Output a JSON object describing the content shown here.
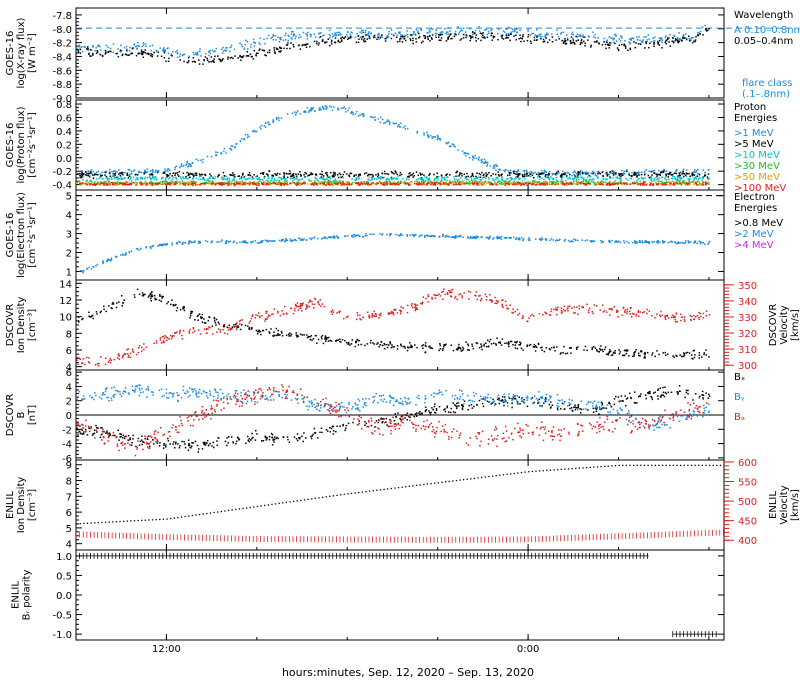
{
  "xaxis": {
    "label": "hours:minutes, Sep. 12, 2020 – Sep. 13, 2020",
    "range_hours": [
      -3,
      18.5
    ],
    "ticks": [
      {
        "value": 0,
        "label": "12:00"
      },
      {
        "value": 12,
        "label": "0:00"
      }
    ]
  },
  "chart_data": [
    {
      "id": "xray",
      "type": "scatter",
      "ylabel_lines": [
        "GOES-16",
        "log(X-ray flux)",
        "[W m⁻²]"
      ],
      "ylim": [
        -9.0,
        -7.7
      ],
      "ticks": [
        -9.0,
        -8.8,
        -8.6,
        -8.4,
        -8.2,
        -8.0,
        -7.8
      ],
      "tick_labels": [
        "-9.0",
        "-8.8",
        "-8.6",
        "-8.4",
        "-8.2",
        "-8.0",
        "-7.8"
      ],
      "hline": {
        "value": -7.99,
        "dash": true,
        "color": "#1a8de0"
      },
      "legend": {
        "title_lines": [
          "Wavelength"
        ],
        "items": [
          {
            "text": "A 0.10–0.8nm",
            "color": "#1a8de0"
          },
          {
            "text": "0.05–0.4nm",
            "color": "#000000"
          }
        ],
        "footer_lines": [
          "flare class",
          "(.1–.8nm)"
        ],
        "footer_color": "#1a8de0"
      },
      "series": [
        {
          "name": "0.10–0.8nm",
          "color": "#1a8de0",
          "x": [
            -3,
            -1.8,
            -0.6,
            0.6,
            1.8,
            3,
            4.2,
            5.4,
            6.6,
            7.8,
            9,
            10.2,
            11.4,
            12.6,
            13.8,
            15,
            16.2,
            17.4,
            18
          ],
          "y": [
            -8.28,
            -8.28,
            -8.24,
            -8.38,
            -8.3,
            -8.18,
            -8.08,
            -8.06,
            -8.06,
            -8.07,
            -8.04,
            -8.03,
            -8.04,
            -8.08,
            -8.1,
            -8.15,
            -8.15,
            -8.1,
            -7.92
          ],
          "noise": 0.05
        },
        {
          "name": "0.05–0.4nm",
          "color": "#000000",
          "x": [
            -3,
            -1.8,
            -0.6,
            0.6,
            1.8,
            3,
            4.2,
            5.4,
            6.6,
            7.8,
            9,
            10.2,
            11.4,
            12.6,
            13.8,
            15,
            16.2,
            17.4,
            18
          ],
          "y": [
            -8.32,
            -8.33,
            -8.35,
            -8.46,
            -8.44,
            -8.36,
            -8.22,
            -8.16,
            -8.14,
            -8.13,
            -8.12,
            -8.1,
            -8.12,
            -8.15,
            -8.18,
            -8.24,
            -8.2,
            -8.15,
            -8.0
          ],
          "noise": 0.05
        }
      ]
    },
    {
      "id": "proton",
      "type": "scatter",
      "ylabel_lines": [
        "GOES-16",
        "log(Proton flux)",
        "[cm⁻²s⁻¹sr⁻¹]"
      ],
      "ylim": [
        -0.48,
        0.86
      ],
      "ticks": [
        -0.4,
        -0.2,
        0.0,
        0.2,
        0.4,
        0.6,
        0.8
      ],
      "tick_labels": [
        "-0.4",
        "-0.2",
        "0.0",
        "0.2",
        "0.4",
        "0.6",
        "0.8"
      ],
      "legend": {
        "title_lines": [
          "Proton",
          "Energies"
        ],
        "items": [
          {
            "text": ">1 MeV",
            "color": "#1a8de0"
          },
          {
            "text": ">5 MeV",
            "color": "#000000"
          },
          {
            "text": ">10 MeV",
            "color": "#00c8c8"
          },
          {
            "text": ">30 MeV",
            "color": "#22bb22"
          },
          {
            "text": ">50 MeV",
            "color": "#e0a000"
          },
          {
            "text": ">100 MeV",
            "color": "#e02020"
          }
        ]
      },
      "series": [
        {
          "name": ">1 MeV",
          "color": "#1a8de0",
          "x": [
            -3,
            -1,
            0,
            1,
            2,
            3,
            4,
            5,
            6,
            7,
            8,
            9,
            10,
            11,
            12,
            14,
            16,
            18
          ],
          "y": [
            -0.2,
            -0.2,
            -0.18,
            -0.05,
            0.12,
            0.45,
            0.65,
            0.75,
            0.72,
            0.58,
            0.45,
            0.3,
            0.05,
            -0.15,
            -0.22,
            -0.22,
            -0.2,
            -0.2
          ],
          "noise": 0.03
        },
        {
          "name": ">5 MeV",
          "color": "#000000",
          "x": [
            -3,
            18
          ],
          "y": [
            -0.24,
            -0.24
          ],
          "noise": 0.035
        },
        {
          "name": ">10 MeV",
          "color": "#00c8c8",
          "x": [
            -3,
            18
          ],
          "y": [
            -0.3,
            -0.3
          ],
          "noise": 0.025
        },
        {
          "name": ">30 MeV",
          "color": "#22bb22",
          "x": [
            -3,
            18
          ],
          "y": [
            -0.36,
            -0.36
          ],
          "noise": 0.02
        },
        {
          "name": ">50 MeV",
          "color": "#e0a000",
          "x": [
            -3,
            18
          ],
          "y": [
            -0.37,
            -0.37
          ],
          "noise": 0.02
        },
        {
          "name": ">100 MeV",
          "color": "#e02020",
          "x": [
            -3,
            18
          ],
          "y": [
            -0.38,
            -0.38
          ],
          "noise": 0.015
        }
      ]
    },
    {
      "id": "electron",
      "type": "scatter",
      "ylabel_lines": [
        "GOES-16",
        "log(Electron flux)",
        "[cm⁻²s⁻¹sr⁻¹]"
      ],
      "ylim": [
        0.55,
        5.3
      ],
      "ticks": [
        1,
        2,
        3,
        4,
        5
      ],
      "tick_labels": [
        "1",
        "2",
        "3",
        "4",
        "5"
      ],
      "hline": {
        "value": 5.0,
        "dash": true,
        "color": "#000000"
      },
      "legend": {
        "title_lines": [
          "Electron",
          "Energies"
        ],
        "items": [
          {
            "text": ">0.8 MeV",
            "color": "#000000"
          },
          {
            "text": ">2 MeV",
            "color": "#1a8de0"
          },
          {
            "text": ">4 MeV",
            "color": "#e020e0"
          }
        ]
      },
      "series": [
        {
          "name": ">2 MeV",
          "color": "#1a8de0",
          "x": [
            -3,
            -2,
            -1,
            0,
            1,
            2,
            3,
            4,
            5,
            6,
            7,
            8,
            9,
            10,
            11,
            12,
            13,
            14,
            15,
            16,
            17,
            18
          ],
          "y": [
            0.9,
            1.6,
            2.2,
            2.5,
            2.6,
            2.6,
            2.6,
            2.7,
            2.8,
            2.9,
            3.0,
            2.95,
            2.9,
            2.85,
            2.8,
            2.75,
            2.7,
            2.65,
            2.6,
            2.6,
            2.6,
            2.55
          ],
          "noise": 0.06
        }
      ]
    },
    {
      "id": "dscovr-density",
      "type": "scatter",
      "ylabel_lines": [
        "DSCOVR",
        "Ion Density",
        "[cm⁻³]"
      ],
      "right_label_lines": [
        "DSCOVR",
        "Velocity",
        "[km/s]"
      ],
      "ylim": [
        3.6,
        14.4
      ],
      "ticks": [
        4,
        6,
        8,
        10,
        12,
        14
      ],
      "tick_labels": [
        "4",
        "6",
        "8",
        "10",
        "12",
        "14"
      ],
      "ylim_right": [
        297,
        353
      ],
      "ticks_right": [
        300,
        310,
        320,
        330,
        340,
        350
      ],
      "tick_labels_right": [
        "300",
        "310",
        "320",
        "330",
        "340",
        "350"
      ],
      "series": [
        {
          "name": "Ion Density",
          "color": "#000000",
          "axis": "left",
          "x": [
            -3,
            -2,
            -1,
            0,
            1,
            2,
            3,
            4,
            5,
            6,
            7,
            8,
            9,
            10,
            11,
            12,
            13,
            14,
            15,
            16,
            17,
            18
          ],
          "y": [
            9.5,
            11,
            13,
            12,
            10,
            9,
            8.5,
            8,
            7.5,
            7,
            6.8,
            6.5,
            6.3,
            6.5,
            7,
            6.5,
            6,
            6.2,
            5.8,
            5.6,
            5.4,
            5.8
          ],
          "noise": 0.4
        },
        {
          "name": "Velocity",
          "color": "#e02020",
          "axis": "right",
          "x": [
            -3,
            -2,
            -1,
            0,
            1,
            2,
            3,
            4,
            5,
            6,
            7,
            8,
            9,
            10,
            11,
            12,
            13,
            14,
            15,
            16,
            17,
            18
          ],
          "y": [
            304,
            302,
            310,
            318,
            322,
            323,
            330,
            335,
            340,
            330,
            332,
            335,
            345,
            344,
            340,
            330,
            335,
            336,
            334,
            332,
            330,
            332
          ],
          "noise": 2.2
        }
      ]
    },
    {
      "id": "dscovr-b",
      "type": "scatter",
      "ylabel_lines": [
        "DSCOVR",
        "B",
        "[nT]"
      ],
      "ylim": [
        -6.3,
        6.3
      ],
      "ticks": [
        -6,
        -4,
        -2,
        0,
        2,
        4,
        6
      ],
      "tick_labels": [
        "-6",
        "-4",
        "-2",
        "0",
        "2",
        "4",
        "6"
      ],
      "hline": {
        "value": 0,
        "dash": false,
        "color": "#000000"
      },
      "legend": {
        "items": [
          {
            "text": "Bₓ",
            "color": "#000000"
          },
          {
            "text": "Bᵧ",
            "color": "#1a8de0"
          },
          {
            "text": "Bₔ",
            "color": "#e02020"
          }
        ]
      },
      "series": [
        {
          "name": "Bx",
          "color": "#000000",
          "x": [
            -3,
            -2,
            -1,
            0,
            1,
            2,
            3,
            4,
            5,
            6,
            7,
            8,
            9,
            10,
            11,
            12,
            13,
            14,
            15,
            16,
            17,
            18
          ],
          "y": [
            -2,
            -2.5,
            -3.5,
            -4,
            -4.2,
            -3.5,
            -3,
            -3.3,
            -2.5,
            -1.5,
            -1,
            0,
            1,
            1.5,
            2,
            2,
            1.5,
            0.5,
            2,
            3,
            3.5,
            2.5
          ],
          "noise": 0.6
        },
        {
          "name": "By",
          "color": "#1a8de0",
          "x": [
            -3,
            -2,
            -1,
            0,
            1,
            2,
            3,
            4,
            5,
            6,
            7,
            8,
            9,
            10,
            11,
            12,
            13,
            14,
            15,
            16,
            17,
            18
          ],
          "y": [
            2.5,
            3,
            3.5,
            3,
            3.2,
            3,
            2.5,
            2.8,
            1.5,
            1,
            2.5,
            2,
            3,
            2.5,
            2,
            2.5,
            2,
            1.5,
            0.5,
            -1.5,
            -0.5,
            1
          ],
          "noise": 0.7
        },
        {
          "name": "Bz",
          "color": "#e02020",
          "x": [
            -3,
            -2,
            -1,
            0,
            1,
            2,
            3,
            4,
            5,
            6,
            7,
            8,
            9,
            10,
            11,
            12,
            13,
            14,
            15,
            16,
            17,
            18
          ],
          "y": [
            -1,
            -3,
            -4.5,
            -2,
            0,
            2,
            3,
            3.5,
            2,
            0,
            -1.5,
            -1,
            -2,
            -3,
            -3,
            -2,
            -2.5,
            -1.5,
            -1,
            -1,
            0,
            2
          ],
          "noise": 0.9
        }
      ]
    },
    {
      "id": "enlil-density",
      "type": "scatter",
      "ylabel_lines": [
        "ENLIL",
        "Ion Density",
        "[cm⁻³]"
      ],
      "right_label_lines": [
        "ENLIL",
        "Velocity",
        "[km/s]"
      ],
      "ylim": [
        3.6,
        9.3
      ],
      "ticks": [
        4,
        5,
        6,
        7,
        8,
        9
      ],
      "tick_labels": [
        "4",
        "5",
        "6",
        "7",
        "8",
        "9"
      ],
      "ylim_right": [
        375,
        605
      ],
      "ticks_right": [
        400,
        450,
        500,
        550,
        600
      ],
      "tick_labels_right": [
        "400",
        "450",
        "500",
        "550",
        "600"
      ],
      "series": [
        {
          "name": "Ion Density",
          "color": "#000000",
          "axis": "left",
          "x": [
            -3,
            0,
            3,
            6,
            9,
            12,
            15,
            18.5
          ],
          "y": [
            5.3,
            5.6,
            6.4,
            7.2,
            7.9,
            8.6,
            9.0,
            9.0
          ],
          "noise": 0
        },
        {
          "name": "Velocity",
          "color": "#e02020",
          "axis": "right",
          "x": [
            -3,
            0,
            3,
            6,
            9,
            12,
            15,
            18.5
          ],
          "y": [
            415,
            408,
            403,
            402,
            401,
            402,
            410,
            420
          ],
          "noise": 0
        }
      ]
    },
    {
      "id": "enlil-polarity",
      "type": "scatter",
      "ylabel_lines": [
        "ENLIL",
        "Bᵣ polarity"
      ],
      "ylim": [
        -1.15,
        1.15
      ],
      "ticks": [
        -1.0,
        -0.5,
        0.0,
        0.5,
        1.0
      ],
      "tick_labels": [
        "-1.0",
        "-0.5",
        "0.0",
        "0.5",
        "1.0"
      ],
      "series": [
        {
          "name": "polarity",
          "color": "#000000",
          "x": [
            -3,
            16
          ],
          "y": [
            1,
            1
          ],
          "noise": 0
        },
        {
          "name": "polarity-neg",
          "color": "#000000",
          "x": [
            16.8,
            18.3
          ],
          "y": [
            -1,
            -1
          ],
          "noise": 0
        }
      ]
    }
  ]
}
